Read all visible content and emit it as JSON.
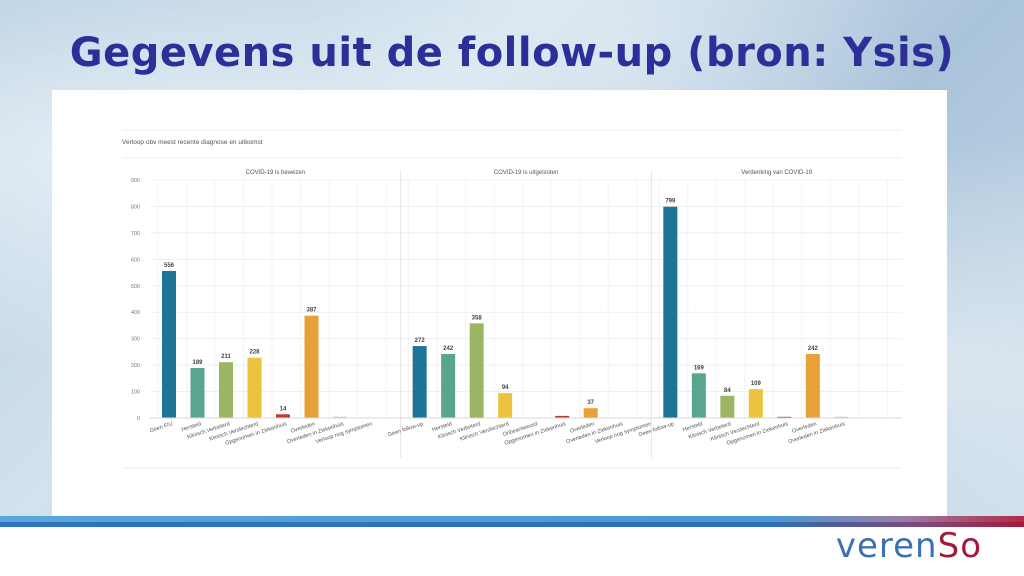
{
  "slide": {
    "title": "Gegevens uit de follow-up (bron: Ysis)"
  },
  "logo": {
    "part1": "veren",
    "part2": "So"
  },
  "chart_data": {
    "type": "bar",
    "title": "Verloop obv meest recente diagnose en uitkomst",
    "ylim": [
      0,
      900
    ],
    "yticks": [
      0,
      100,
      200,
      300,
      400,
      500,
      600,
      700,
      800,
      900
    ],
    "grid": true,
    "panels": [
      {
        "title": "COVID-19 is bewezen",
        "categories": [
          "Geen F/U",
          "Hersteld",
          "Klinisch Verbeterd",
          "Klinisch Verslechterd",
          "Opgenomen in Ziekenhuis",
          "Overleden",
          "Overleden in Ziekenhuis",
          "Verloop nog symptomen"
        ],
        "values": [
          556,
          189,
          211,
          228,
          14,
          387,
          4,
          0
        ],
        "labels": [
          "556",
          "189",
          "211",
          "228",
          "14",
          "387",
          "",
          ""
        ]
      },
      {
        "title": "COVID-19 is uitgesloten",
        "categories": [
          "Geen follow-up",
          "Hersteld",
          "Klinisch Verbeterd",
          "Klinisch Verslechterd",
          "Onbeantwoord",
          "Opgenomen in Ziekenhuis",
          "Overleden",
          "Overleden in Ziekenhuis",
          "Verloop nog symptomen"
        ],
        "values": [
          272,
          242,
          358,
          94,
          0,
          8,
          37,
          0,
          0
        ],
        "labels": [
          "272",
          "242",
          "358",
          "94",
          "",
          "",
          "37",
          "",
          ""
        ]
      },
      {
        "title": "Verdenking van COVID-19",
        "categories": [
          "Geen follow-up",
          "Hersteld",
          "Klinisch Verbeterd",
          "Klinisch Verslechterd",
          "Opgenomen in Ziekenhuis",
          "Overleden",
          "Overleden in Ziekenhuis"
        ],
        "values": [
          799,
          169,
          84,
          109,
          3,
          242,
          2
        ],
        "labels": [
          "799",
          "169",
          "84",
          "109",
          "",
          "242",
          ""
        ]
      }
    ],
    "colors": {
      "Geen F/U": "#1d7596",
      "Geen follow-up": "#1d7596",
      "Hersteld": "#5aa58f",
      "Klinisch Verbeterd": "#9bb564",
      "Klinisch Verslechterd": "#ecc33e",
      "Onbeantwoord": "#c6c6c6",
      "Opgenomen in Ziekenhuis": "#c2382f",
      "Overleden": "#e8a136",
      "Overleden in Ziekenhuis": "#edb87c",
      "Verloop nog symptomen": "#d8d8d8"
    }
  }
}
